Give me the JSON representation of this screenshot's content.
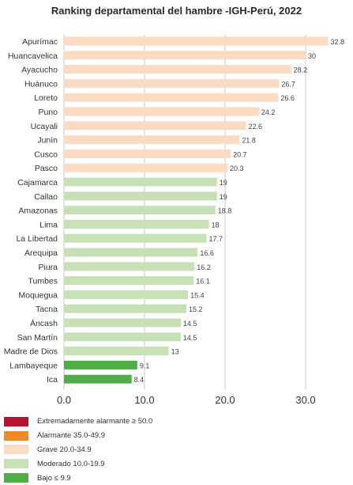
{
  "chart_data": {
    "type": "bar",
    "orientation": "horizontal",
    "title": "Ranking departamental del hambre -IGH-Perú, 2022",
    "categories": [
      "Apurímac",
      "Huancavelica",
      "Ayacucho",
      "Huánuco",
      "Loreto",
      "Puno",
      "Ucayali",
      "Junín",
      "Cusco",
      "Pasco",
      "Cajamarca",
      "Callao",
      "Amazonas",
      "Lima",
      "La Libertad",
      "Arequipa",
      "Piura",
      "Tumbes",
      "Moquegua",
      "Tacna",
      "Áncash",
      "San Martín",
      "Madre de Dios",
      "Lambayeque",
      "Ica"
    ],
    "values": [
      32.8,
      30,
      28.2,
      26.7,
      26.6,
      24.2,
      22.6,
      21.8,
      20.7,
      20.3,
      19,
      19,
      18.8,
      18,
      17.7,
      16.6,
      16.2,
      16.1,
      15.4,
      15.2,
      14.5,
      14.5,
      13,
      9.1,
      8.4
    ],
    "value_labels": [
      "32.8",
      "30",
      "28.2",
      "26.7",
      "26.6",
      "24.2",
      "22.6",
      "21.8",
      "20.7",
      "20.3",
      "19",
      "19",
      "18.8",
      "18",
      "17.7",
      "16.6",
      "16.2",
      "16.1",
      "15.4",
      "15.2",
      "14.5",
      "14.5",
      "13",
      "9.1",
      "8.4"
    ],
    "xlim": [
      0,
      34
    ],
    "xticks": [
      0,
      10,
      20,
      30
    ],
    "xtick_labels": [
      "0.0",
      "10.0",
      "20.0",
      "30.0"
    ],
    "grid": true,
    "legend_position": "bottom-left",
    "legend": [
      {
        "label": "Extremadamente alarmante ≥ 50.0",
        "color": "#b5132e"
      },
      {
        "label": "Alarmante 35.0-49.9",
        "color": "#f08a24"
      },
      {
        "label": "Grave 20.0-34.9",
        "color": "#fbdbc2"
      },
      {
        "label": "Moderado 10.0-19.9",
        "color": "#c7e0b5"
      },
      {
        "label": "Bajo ≤ 9.9",
        "color": "#4fae48"
      }
    ],
    "severity_colors": {
      "grave": "#fbdbc2",
      "moderado": "#c7e0b5",
      "bajo": "#4fae48"
    }
  }
}
